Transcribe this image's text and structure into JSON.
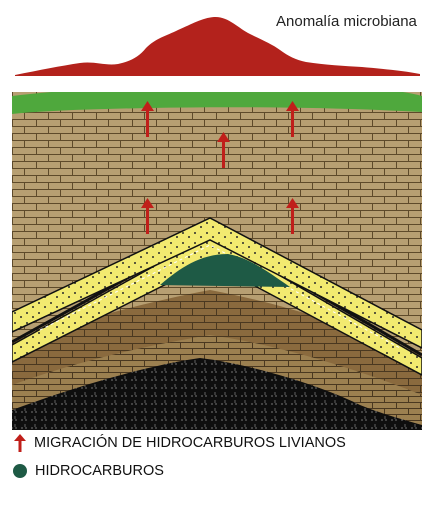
{
  "labels": {
    "anomaly": "Anomalía microbiana"
  },
  "legend": {
    "migration": "MIGRACIÓN DE HIDROCARBUROS LIVIANOS",
    "hydrocarbons": "HIDROCARBUROS"
  },
  "colors": {
    "anomaly": "#b3221c",
    "surface": "#4fa83d",
    "brick": "#b79f72",
    "brick_line": "#5e4a2a",
    "sand": "#f2ea70",
    "hydrocarbon": "#1e5a45",
    "arrow": "#c01f1a",
    "dark_brick": "#8a6a3e",
    "black_layer": "#111111"
  },
  "icons": {
    "migration": "red-up-arrow-icon",
    "hydrocarbons": "dark-green-dot-icon"
  }
}
